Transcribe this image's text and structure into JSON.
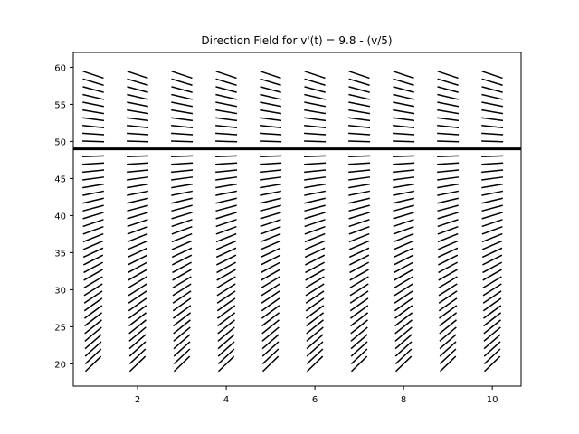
{
  "chart_data": {
    "type": "direction-field",
    "title": "Direction Field for v'(t) = 9.8 - (v/5)",
    "xlabel": "",
    "ylabel": "",
    "equation": {
      "a": 9.8,
      "b": 0.2
    },
    "xlim": [
      0.55,
      10.65
    ],
    "ylim": [
      17,
      62
    ],
    "x_ticks": [
      2,
      4,
      6,
      8,
      10
    ],
    "y_ticks": [
      20,
      25,
      30,
      35,
      40,
      45,
      50,
      55,
      60
    ],
    "grid": false,
    "field_x": [
      1,
      2,
      3,
      4,
      5,
      6,
      7,
      8,
      9,
      10
    ],
    "field_v": [
      20,
      21,
      22,
      23,
      24,
      25,
      26,
      27,
      28,
      29,
      30,
      31,
      32,
      33,
      34,
      35,
      36,
      37,
      38,
      39,
      40,
      41,
      42,
      43,
      44,
      45,
      46,
      47,
      48,
      50,
      51,
      52,
      53,
      54,
      55,
      56,
      57,
      58,
      59
    ],
    "equilibrium": {
      "v": 49
    },
    "colors": {
      "segments": "#000000",
      "equilibrium": "#000000",
      "axes": "#000000"
    }
  }
}
